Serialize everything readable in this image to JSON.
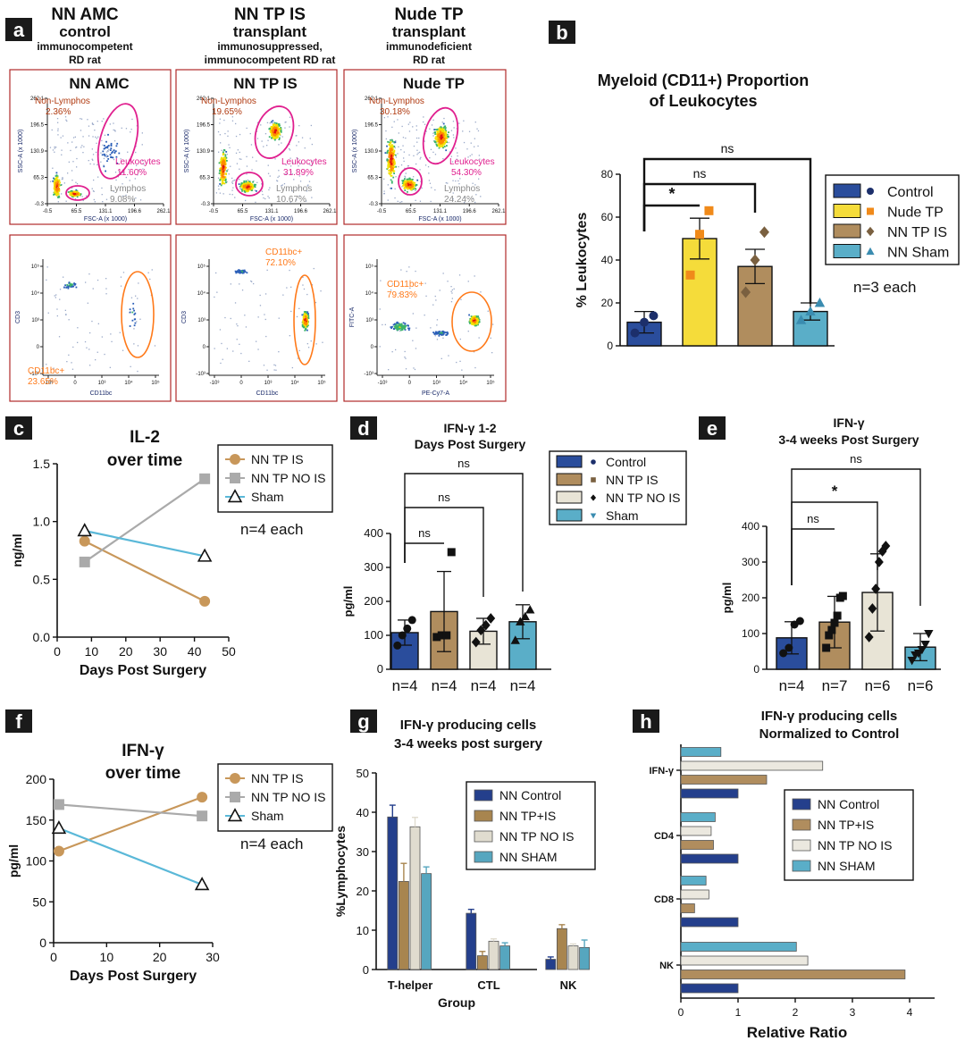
{
  "colors": {
    "control": "#2a4d9c",
    "nude": "#f5dc3a",
    "tpis": "#b08d5e",
    "tpnois": "#e8e4d6",
    "sham": "#5aaec8",
    "panel_border": "#b02a2a",
    "magenta": "#e0208f",
    "orange": "#ff7a1a",
    "gray": "#8a8a8a",
    "line_tpis": "#c8975a",
    "line_nois": "#aaaaaa",
    "line_sham": "#5ab8d8",
    "dark_red": "#b03a10"
  },
  "panel_a": {
    "letter": "a",
    "columns": [
      {
        "title": "NN AMC",
        "subtitle": "control",
        "desc1": "immunocompetent",
        "desc2": "RD rat"
      },
      {
        "title": "NN TP IS",
        "subtitle": "transplant",
        "desc1": "immunosuppressed,",
        "desc2": "immunocompetent RD rat"
      },
      {
        "title": "Nude TP",
        "subtitle": "transplant",
        "desc1": "immunodeficient",
        "desc2": "RD rat"
      }
    ],
    "top_plots": [
      {
        "name": "NN AMC",
        "nonlym_label": "Non-Lymphos",
        "nonlym_pct": "2.36%",
        "leuk_label": "Leukocytes",
        "leuk_pct": "11.60%",
        "lym_label": "Lymphos",
        "lym_pct": "9.08%",
        "yticks": [
          "262.1",
          "196.5",
          "130.9",
          "65.3",
          "-0.3"
        ],
        "xticks": [
          "-0.5",
          "65.5",
          "131.1",
          "196.6",
          "262.1"
        ],
        "xlabel": "FSC-A (x 1000)",
        "ylabel": "SSC-A (x 1000)"
      },
      {
        "name": "NN TP IS",
        "nonlym_label": "Non-Lymphos",
        "nonlym_pct": "19.65%",
        "leuk_label": "Leukocytes",
        "leuk_pct": "31.89%",
        "lym_label": "Lymphos",
        "lym_pct": "10.67%",
        "yticks": [
          "262.1",
          "196.5",
          "130.9",
          "65.3",
          "-0.3"
        ],
        "xticks": [
          "-0.5",
          "65.5",
          "131.1",
          "196.6",
          "262.1"
        ],
        "xlabel": "FSC-A (x 1000)",
        "ylabel": "SSC-A (x 1000)"
      },
      {
        "name": "Nude TP",
        "nonlym_label": "Non-Lymphos",
        "nonlym_pct": "30.18%",
        "leuk_label": "Leukocytes",
        "leuk_pct": "54.30%",
        "lym_label": "Lymphos",
        "lym_pct": "24.24%",
        "yticks": [
          "262.1",
          "196.5",
          "130.9",
          "65.3",
          "-0.3"
        ],
        "xticks": [
          "-0.5",
          "65.5",
          "131.1",
          "196.6",
          "262.1"
        ],
        "xlabel": "FSC-A (x 1000)",
        "ylabel": "SSC-A (x 1000)"
      }
    ],
    "bottom_plots": [
      {
        "gate_label": "CD11bc+",
        "gate_pct": "23.65%",
        "xlabel": "CD11bc",
        "ylabel": "CD3"
      },
      {
        "gate_label": "CD11bc+",
        "gate_pct": "72.10%",
        "xlabel": "CD11bc",
        "ylabel": "CD3"
      },
      {
        "gate_label": "CD11bc+",
        "gate_pct": "79.83%",
        "xlabel": "PE-Cy7-A",
        "ylabel": "FITC-A"
      }
    ],
    "log_yticks": [
      "10⁵",
      "10⁴",
      "10³",
      "0",
      "-10³"
    ],
    "log_xticks": [
      "-10³",
      "0",
      "10³",
      "10⁴",
      "10⁵"
    ]
  },
  "chart_data": [
    {
      "id": "b",
      "type": "bar",
      "letter": "b",
      "title": "Myeloid (CD11+) Proportion",
      "title2": "of Leukocytes",
      "ylabel": "% Leukocytes",
      "ylim": [
        0,
        80
      ],
      "yticks": [
        0,
        20,
        40,
        60,
        80
      ],
      "categories": [
        "Control",
        "Nude TP",
        "NN TP IS",
        "NN Sham"
      ],
      "values": [
        11,
        50,
        37,
        16
      ],
      "errors": [
        5,
        9.5,
        8,
        4
      ],
      "points": [
        [
          6,
          11,
          14
        ],
        [
          33,
          52,
          63
        ],
        [
          25,
          40,
          53
        ],
        [
          12,
          16,
          20
        ]
      ],
      "markers": [
        "circle",
        "square",
        "diamond",
        "triangle"
      ],
      "sig": [
        {
          "from": 0,
          "to": 1,
          "label": "*"
        },
        {
          "from": 0,
          "to": 2,
          "label": "ns"
        },
        {
          "from": 0,
          "to": 3,
          "label": "ns"
        }
      ],
      "legend": [
        "Control",
        "Nude TP",
        "NN TP IS",
        "NN Sham"
      ],
      "note": "n=3 each"
    },
    {
      "id": "c",
      "type": "line",
      "letter": "c",
      "title": "IL-2",
      "title2": "over time",
      "xlabel": "Days Post Surgery",
      "ylabel": "ng/ml",
      "xlim": [
        0,
        50
      ],
      "ylim": [
        0,
        1.5
      ],
      "xticks": [
        0,
        10,
        20,
        30,
        40,
        50
      ],
      "yticks": [
        0.0,
        0.5,
        1.0,
        1.5
      ],
      "series": [
        {
          "name": "NN TP IS",
          "x": [
            8,
            43
          ],
          "y": [
            0.83,
            0.31
          ],
          "marker": "circle"
        },
        {
          "name": "NN TP NO IS",
          "x": [
            8,
            43
          ],
          "y": [
            0.65,
            1.37
          ],
          "marker": "square"
        },
        {
          "name": "Sham",
          "x": [
            8,
            43
          ],
          "y": [
            0.92,
            0.7
          ],
          "marker": "triangle"
        }
      ],
      "note": "n=4 each"
    },
    {
      "id": "d",
      "type": "bar",
      "letter": "d",
      "title": "IFN-γ 1-2",
      "title2": "Days Post Surgery",
      "ylabel": "pg/ml",
      "ylim": [
        0,
        400
      ],
      "yticks": [
        0,
        100,
        200,
        300,
        400
      ],
      "categories": [
        "Control",
        "NN TP IS",
        "NN TP NO IS",
        "Sham"
      ],
      "values": [
        108,
        170,
        112,
        140
      ],
      "errors": [
        37,
        118,
        38,
        50
      ],
      "points": [
        [
          70,
          100,
          120,
          145
        ],
        [
          95,
          100,
          100,
          345
        ],
        [
          80,
          115,
          130,
          150
        ],
        [
          85,
          140,
          155,
          175
        ]
      ],
      "markers": [
        "circle",
        "square",
        "diamond",
        "triangle"
      ],
      "sig": [
        {
          "from": 0,
          "to": 1,
          "label": "ns"
        },
        {
          "from": 0,
          "to": 2,
          "label": "ns"
        },
        {
          "from": 0,
          "to": 3,
          "label": "ns"
        }
      ],
      "legend": [
        "Control",
        "NN TP IS",
        "NN TP NO IS",
        "Sham"
      ],
      "n_labels": [
        "n=4",
        "n=4",
        "n=4",
        "n=4"
      ]
    },
    {
      "id": "e",
      "type": "bar",
      "letter": "e",
      "title": "IFN-γ",
      "title2": "3-4 weeks Post Surgery",
      "ylabel": "pg/ml",
      "ylim": [
        0,
        400
      ],
      "yticks": [
        0,
        100,
        200,
        300,
        400
      ],
      "categories": [
        "Control",
        "NN TP IS",
        "NN TP NO IS",
        "Sham"
      ],
      "values": [
        88,
        132,
        215,
        62
      ],
      "errors": [
        45,
        72,
        108,
        38
      ],
      "points": [
        [
          45,
          60,
          125,
          135
        ],
        [
          60,
          95,
          110,
          130,
          150,
          200,
          205
        ],
        [
          90,
          170,
          225,
          300,
          330,
          345
        ],
        [
          25,
          40,
          45,
          55,
          70,
          100
        ]
      ],
      "markers": [
        "circle",
        "square",
        "diamond",
        "triangle"
      ],
      "sig": [
        {
          "from": 0,
          "to": 1,
          "label": "ns"
        },
        {
          "from": 0,
          "to": 2,
          "label": "*"
        },
        {
          "from": 0,
          "to": 3,
          "label": "ns"
        }
      ],
      "n_labels": [
        "n=4",
        "n=7",
        "n=6",
        "n=6"
      ]
    },
    {
      "id": "f",
      "type": "line",
      "letter": "f",
      "title": "IFN-γ",
      "title2": "over time",
      "xlabel": "Days Post Surgery",
      "ylabel": "pg/ml",
      "xlim": [
        0,
        30
      ],
      "ylim": [
        0,
        200
      ],
      "xticks": [
        0,
        10,
        20,
        30
      ],
      "yticks": [
        0,
        50,
        100,
        150,
        200
      ],
      "series": [
        {
          "name": "NN TP IS",
          "x": [
            1,
            28
          ],
          "y": [
            112,
            178
          ],
          "marker": "circle"
        },
        {
          "name": "NN TP NO IS",
          "x": [
            1,
            28
          ],
          "y": [
            169,
            155
          ],
          "marker": "square"
        },
        {
          "name": "Sham",
          "x": [
            1,
            28
          ],
          "y": [
            140,
            71
          ],
          "marker": "triangle"
        }
      ],
      "note": "n=4 each"
    },
    {
      "id": "g",
      "type": "bar",
      "letter": "g",
      "title": "IFN-γ producing cells",
      "title2": "3-4 weeks post surgery",
      "xlabel": "Group",
      "ylabel": "%Lymphocytes",
      "ylim": [
        0,
        50
      ],
      "yticks": [
        0,
        10,
        20,
        30,
        40,
        50
      ],
      "categories": [
        "T-helper",
        "CTL",
        "NK"
      ],
      "series": [
        {
          "name": "NN Control",
          "values": [
            38.8,
            14.3,
            2.6
          ],
          "errors": [
            3.0,
            1.0,
            0.6
          ]
        },
        {
          "name": "NN TP+IS",
          "values": [
            22.4,
            3.5,
            10.4
          ],
          "errors": [
            4.6,
            1.1,
            1.0
          ]
        },
        {
          "name": "NN TP NO IS",
          "values": [
            36.3,
            7.2,
            6.0
          ],
          "errors": [
            2.4,
            0.6,
            0.5
          ]
        },
        {
          "name": "NN SHAM",
          "values": [
            24.4,
            6.0,
            5.6
          ],
          "errors": [
            1.7,
            0.8,
            1.9
          ]
        }
      ]
    },
    {
      "id": "h",
      "type": "bar",
      "letter": "h",
      "orientation": "horizontal",
      "title": "IFN-γ producing cells",
      "title2": "Normalized to Control",
      "xlabel": "Relative Ratio",
      "xlim": [
        0,
        4
      ],
      "xticks": [
        0,
        1,
        2,
        3,
        4
      ],
      "categories": [
        "IFN-γ",
        "CD4",
        "CD8",
        "NK"
      ],
      "series": [
        {
          "name": "NN Control",
          "values": [
            1.0,
            1.0,
            1.0,
            1.0
          ]
        },
        {
          "name": "NN TP+IS",
          "values": [
            1.5,
            0.57,
            0.24,
            3.92
          ]
        },
        {
          "name": "NN TP NO IS",
          "values": [
            2.48,
            0.53,
            0.49,
            2.22
          ]
        },
        {
          "name": "NN SHAM",
          "values": [
            0.7,
            0.6,
            0.44,
            2.02
          ]
        }
      ]
    }
  ]
}
